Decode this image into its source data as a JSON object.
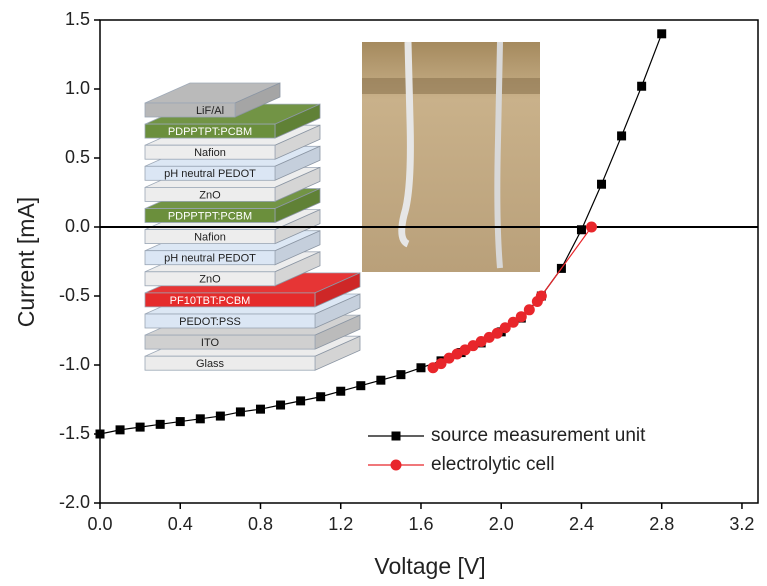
{
  "chart_data": {
    "type": "line",
    "x_label": "Voltage [V]",
    "y_label": "Current [mA]",
    "xlim": [
      0,
      3.28
    ],
    "ylim": [
      -2.0,
      1.5
    ],
    "xticks": [
      {
        "value": 0,
        "label": "0.0"
      },
      0.4,
      0.8,
      1.2,
      1.6,
      {
        "value": 2,
        "label": "2.0"
      },
      2.4,
      2.8,
      3.2
    ],
    "yticks": [
      {
        "value": -2,
        "label": "-2.0"
      },
      -1.5,
      {
        "value": -1,
        "label": "-1.0"
      },
      -0.5,
      {
        "value": 0,
        "label": "0.0"
      },
      0.5,
      {
        "value": 1,
        "label": "1.0"
      },
      1.5
    ],
    "zero_line": true,
    "legend": "lower right",
    "series": [
      {
        "name": "source measurement unit",
        "color": "#000000",
        "marker": "square",
        "x": [
          0,
          0.1,
          0.2,
          0.3,
          0.4,
          0.5,
          0.6,
          0.7,
          0.8,
          0.9,
          1.0,
          1.1,
          1.2,
          1.3,
          1.4,
          1.5,
          1.6,
          1.7,
          1.8,
          1.9,
          2.0,
          2.1,
          2.2,
          2.3,
          2.4,
          2.5,
          2.6,
          2.7,
          2.8
        ],
        "values": [
          -1.5,
          -1.47,
          -1.45,
          -1.43,
          -1.41,
          -1.39,
          -1.37,
          -1.34,
          -1.32,
          -1.29,
          -1.26,
          -1.23,
          -1.19,
          -1.15,
          -1.11,
          -1.07,
          -1.02,
          -0.97,
          -0.91,
          -0.84,
          -0.76,
          -0.66,
          -0.5,
          -0.3,
          -0.02,
          0.31,
          0.66,
          1.02,
          1.4
        ]
      },
      {
        "name": "electrolytic cell",
        "color": "#e8262b",
        "marker": "circle",
        "x": [
          1.66,
          1.7,
          1.74,
          1.78,
          1.82,
          1.86,
          1.9,
          1.94,
          1.98,
          2.02,
          2.06,
          2.1,
          2.14,
          2.18,
          2.2,
          2.45
        ],
        "values": [
          -1.02,
          -0.99,
          -0.95,
          -0.92,
          -0.89,
          -0.86,
          -0.83,
          -0.8,
          -0.77,
          -0.73,
          -0.69,
          -0.65,
          -0.6,
          -0.54,
          -0.5,
          0.0
        ]
      }
    ]
  },
  "inset": {
    "layers": [
      {
        "label": "LiF/Al",
        "color": "#b7b7b7"
      },
      {
        "label": "PDPPTPT:PCBM",
        "color": "#6b8f3c"
      },
      {
        "label": "Nafion",
        "color": "#ededed"
      },
      {
        "label": "pH neutral PEDOT",
        "color": "#dbe6f4"
      },
      {
        "label": "ZnO",
        "color": "#ededed"
      },
      {
        "label": "PDPPTPT:PCBM",
        "color": "#6b8f3c"
      },
      {
        "label": "Nafion",
        "color": "#ededed"
      },
      {
        "label": "pH neutral PEDOT",
        "color": "#dbe6f4"
      },
      {
        "label": "ZnO",
        "color": "#ededed"
      },
      {
        "label": "PF10TBT:PCBM",
        "color": "#e52b2b"
      },
      {
        "label": "PEDOT:PSS",
        "color": "#dbe6f4"
      },
      {
        "label": "ITO",
        "color": "#d0d0d0"
      },
      {
        "label": "Glass",
        "color": "#ececec"
      }
    ]
  }
}
